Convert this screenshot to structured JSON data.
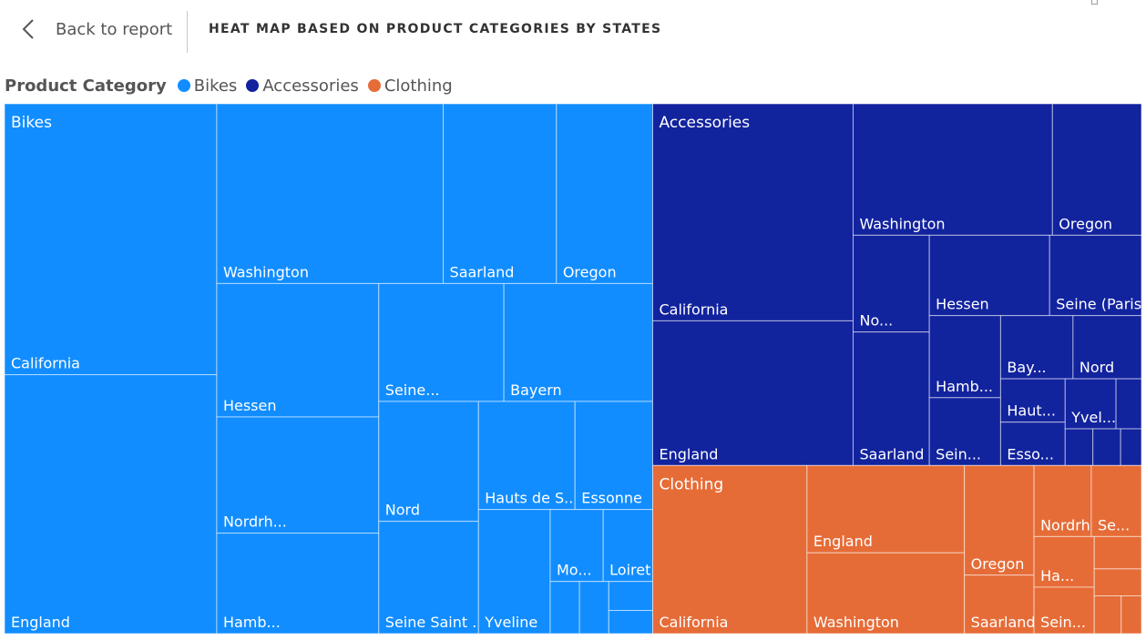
{
  "header": {
    "back_label": "Back to report",
    "title": "HEAT MAP BASED ON PRODUCT CATEGORIES BY STATES"
  },
  "legend": {
    "title": "Product Category",
    "items": [
      {
        "label": "Bikes",
        "color": "#118DFF"
      },
      {
        "label": "Accessories",
        "color": "#12239E"
      },
      {
        "label": "Clothing",
        "color": "#E66C37"
      }
    ]
  },
  "chart_data": {
    "type": "treemap",
    "legend_title": "Product Category",
    "categories": [
      {
        "name": "Bikes",
        "color": "#118DFF",
        "states": [
          {
            "label": "California",
            "value": 2260
          },
          {
            "label": "England",
            "value": 2160
          },
          {
            "label": "Washington",
            "value": 1600
          },
          {
            "label": "Saarland",
            "value": 800
          },
          {
            "label": "Oregon",
            "value": 680
          },
          {
            "label": "Hessen",
            "value": 850
          },
          {
            "label": "Nordrh...",
            "value": 740
          },
          {
            "label": "Hamb...",
            "value": 640
          },
          {
            "label": "Seine...",
            "value": 580
          },
          {
            "label": "Bayern",
            "value": 690
          },
          {
            "label": "Nord",
            "value": 470
          },
          {
            "label": "Seine Saint ...",
            "value": 440
          },
          {
            "label": "Hauts de S...",
            "value": 410
          },
          {
            "label": "Essonne",
            "value": 330
          },
          {
            "label": "Yveline",
            "value": 350
          },
          {
            "label": "Mo...",
            "value": 150
          },
          {
            "label": "Loiret",
            "value": 140
          },
          {
            "label": "",
            "value": 60
          },
          {
            "label": "",
            "value": 60
          },
          {
            "label": "",
            "value": 50
          },
          {
            "label": "",
            "value": 40
          }
        ]
      },
      {
        "name": "Accessories",
        "color": "#12239E",
        "states": [
          {
            "label": "California",
            "value": 1710
          },
          {
            "label": "England",
            "value": 1140
          },
          {
            "label": "Washington",
            "value": 1030
          },
          {
            "label": "Oregon",
            "value": 460
          },
          {
            "label": "No...",
            "value": 290
          },
          {
            "label": "Saarland",
            "value": 400
          },
          {
            "label": "Hessen",
            "value": 380
          },
          {
            "label": "Seine (Paris)",
            "value": 290
          },
          {
            "label": "Hamb...",
            "value": 230
          },
          {
            "label": "Sein...",
            "value": 190
          },
          {
            "label": "Bay...",
            "value": 180
          },
          {
            "label": "Nord",
            "value": 170
          },
          {
            "label": "Haut...",
            "value": 110
          },
          {
            "label": "Esso...",
            "value": 110
          },
          {
            "label": "Yvel...",
            "value": 100
          },
          {
            "label": "",
            "value": 50
          },
          {
            "label": "",
            "value": 40
          },
          {
            "label": "",
            "value": 40
          },
          {
            "label": "",
            "value": 30
          }
        ]
      },
      {
        "name": "Clothing",
        "color": "#E66C37",
        "states": [
          {
            "label": "California",
            "value": 1020
          },
          {
            "label": "England",
            "value": 540
          },
          {
            "label": "Washington",
            "value": 500
          },
          {
            "label": "Oregon",
            "value": 300
          },
          {
            "label": "Saarland",
            "value": 160
          },
          {
            "label": "Nordrhe...",
            "value": 160
          },
          {
            "label": "Se...",
            "value": 140
          },
          {
            "label": "Ha...",
            "value": 120
          },
          {
            "label": "Sein...",
            "value": 110
          },
          {
            "label": "",
            "value": 60
          },
          {
            "label": "",
            "value": 50
          },
          {
            "label": "",
            "value": 40
          },
          {
            "label": "",
            "value": 30
          }
        ]
      }
    ]
  }
}
